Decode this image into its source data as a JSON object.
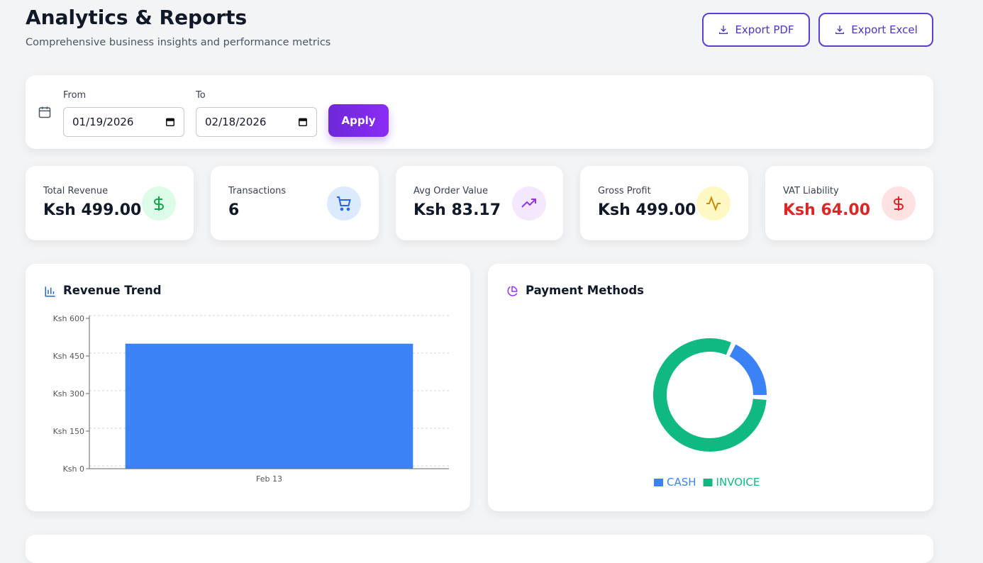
{
  "header": {
    "title": "Analytics & Reports",
    "subtitle": "Comprehensive business insights and performance metrics",
    "buttons": [
      "Export PDF",
      "Export Excel"
    ]
  },
  "filters": {
    "from_label": "From",
    "from_value": "01/19/2026",
    "to_label": "To",
    "to_value": "02/18/2026",
    "apply": "Apply"
  },
  "kpis": [
    {
      "label": "Total Revenue",
      "value": "Ksh 499.00"
    },
    {
      "label": "Transactions",
      "value": "6"
    },
    {
      "label": "Avg Order Value",
      "value": "Ksh 83.17"
    },
    {
      "label": "Gross Profit",
      "value": "Ksh 499.00"
    },
    {
      "label": "VAT Liability",
      "value": "Ksh 64.00"
    }
  ],
  "chart_data": [
    {
      "type": "bar",
      "title": "Revenue Trend",
      "categories": [
        "Feb 13"
      ],
      "values": [
        499
      ],
      "color": "#3b82f6",
      "ylim": [
        0,
        600
      ],
      "yticks": [
        {
          "value": 0,
          "label": "Ksh 0"
        },
        {
          "value": 150,
          "label": "Ksh 150"
        },
        {
          "value": 300,
          "label": "Ksh 300"
        },
        {
          "value": 450,
          "label": "Ksh 450"
        },
        {
          "value": 600,
          "label": "Ksh 600"
        }
      ],
      "grid": true
    },
    {
      "type": "pie",
      "title": "Payment Methods",
      "categories": [
        "CASH",
        "INVOICE"
      ],
      "values": [
        18,
        82
      ],
      "colors": [
        "#3b82f6",
        "#10b981"
      ],
      "donut": true
    }
  ]
}
